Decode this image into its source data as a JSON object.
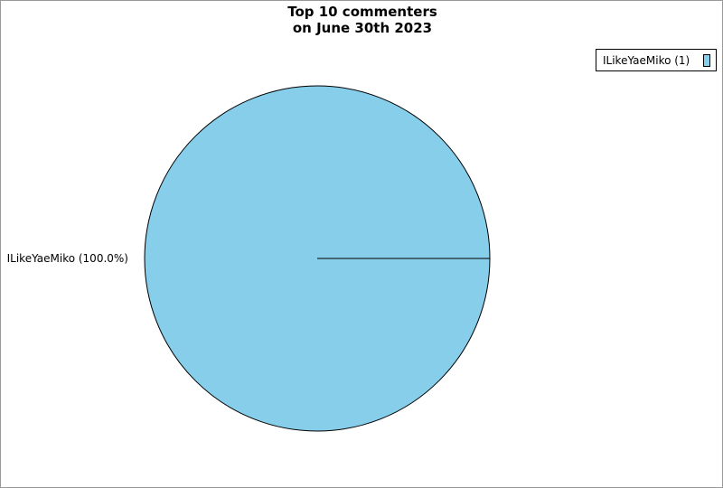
{
  "chart_data": {
    "type": "pie",
    "title_lines": [
      "Top 10 commenters",
      "on June 30th 2023"
    ],
    "slices": [
      {
        "label": "ILikeYaeMiko",
        "value": 1,
        "percent_label": "ILikeYaeMiko (100.0%)",
        "legend_label": "ILikeYaeMiko (1)",
        "color": "#87ceeb"
      }
    ],
    "legend_placement": "top-right"
  }
}
